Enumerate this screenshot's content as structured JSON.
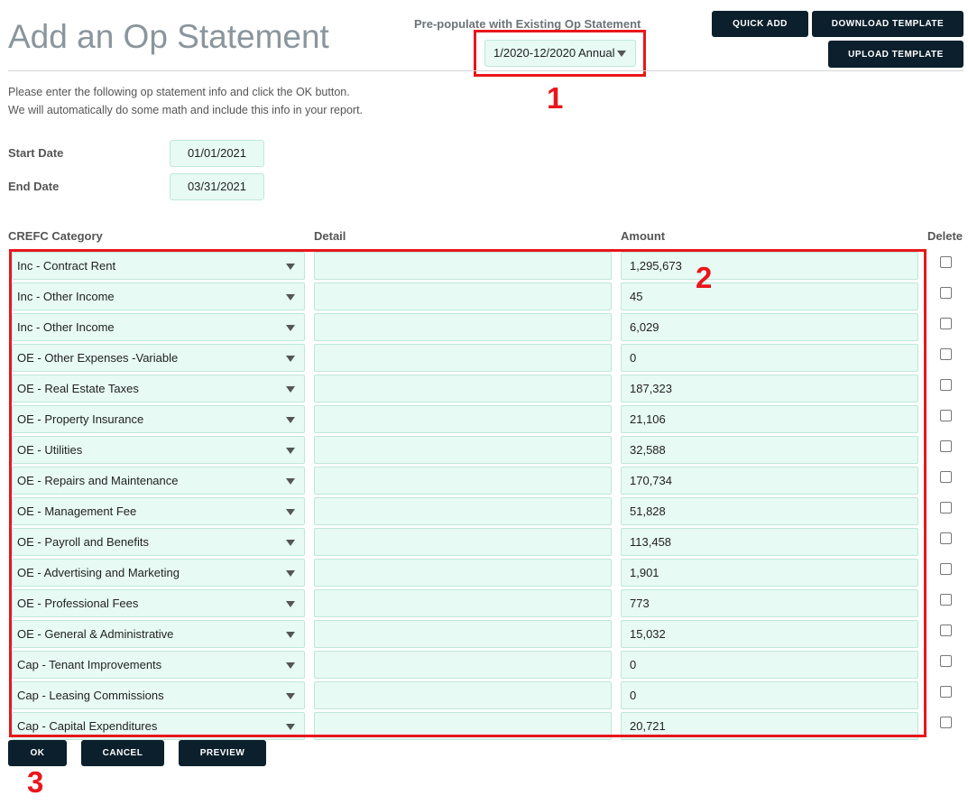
{
  "page": {
    "title": "Add an Op Statement"
  },
  "prepopulate": {
    "label": "Pre-populate with Existing Op Statement",
    "selected": "1/2020-12/2020 Annual"
  },
  "top_buttons": {
    "quick_add": "QUICK ADD",
    "download_template": "DOWNLOAD TEMPLATE",
    "upload_template": "UPLOAD TEMPLATE"
  },
  "intro": {
    "line1": "Please enter the following op statement info and click the OK button.",
    "line2": "We will automatically do some math and include this info in your report."
  },
  "dates": {
    "start_label": "Start Date",
    "start_value": "01/01/2021",
    "end_label": "End Date",
    "end_value": "03/31/2021"
  },
  "columns": {
    "category": "CREFC Category",
    "detail": "Detail",
    "amount": "Amount",
    "delete": "Delete"
  },
  "rows": [
    {
      "category": "Inc - Contract Rent",
      "detail": "",
      "amount": "1,295,673"
    },
    {
      "category": "Inc - Other Income",
      "detail": "",
      "amount": "45"
    },
    {
      "category": "Inc - Other Income",
      "detail": "",
      "amount": "6,029"
    },
    {
      "category": "OE - Other Expenses -Variable",
      "detail": "",
      "amount": "0"
    },
    {
      "category": "OE - Real Estate Taxes",
      "detail": "",
      "amount": "187,323"
    },
    {
      "category": "OE - Property Insurance",
      "detail": "",
      "amount": "21,106"
    },
    {
      "category": "OE - Utilities",
      "detail": "",
      "amount": "32,588"
    },
    {
      "category": "OE - Repairs and Maintenance",
      "detail": "",
      "amount": "170,734"
    },
    {
      "category": "OE - Management Fee",
      "detail": "",
      "amount": "51,828"
    },
    {
      "category": "OE - Payroll and Benefits",
      "detail": "",
      "amount": "113,458"
    },
    {
      "category": "OE - Advertising and Marketing",
      "detail": "",
      "amount": "1,901"
    },
    {
      "category": "OE - Professional Fees",
      "detail": "",
      "amount": "773"
    },
    {
      "category": "OE - General & Administrative",
      "detail": "",
      "amount": "15,032"
    },
    {
      "category": "Cap - Tenant Improvements",
      "detail": "",
      "amount": "0"
    },
    {
      "category": "Cap - Leasing Commissions",
      "detail": "",
      "amount": "0"
    },
    {
      "category": "Cap - Capital Expenditures",
      "detail": "",
      "amount": "20,721"
    }
  ],
  "bottom_buttons": {
    "ok": "OK",
    "cancel": "CANCEL",
    "preview": "PREVIEW"
  },
  "annotations": {
    "n1": "1",
    "n2": "2",
    "n3": "3"
  },
  "colors": {
    "accent_field": "#e7faf4",
    "button": "#0b1f2c",
    "annotation": "#e8161c"
  },
  "icons": {
    "dropdown": "caret-down-icon"
  }
}
